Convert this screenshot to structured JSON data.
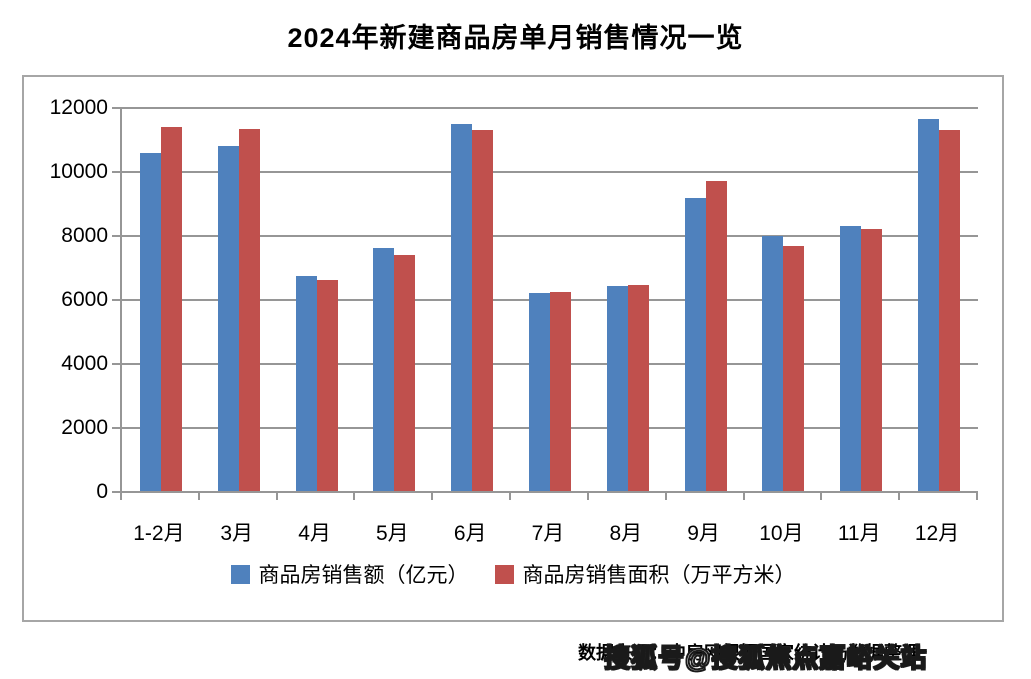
{
  "title": "2024年新建商品房单月销售情况一览",
  "chart_data": {
    "type": "bar",
    "categories": [
      "1-2月",
      "3月",
      "4月",
      "5月",
      "6月",
      "7月",
      "8月",
      "9月",
      "10月",
      "11月",
      "12月"
    ],
    "series": [
      {
        "name": "商品房销售额（亿元）",
        "color": "#4F81BD",
        "values": [
          10566,
          10789,
          6712,
          7598,
          11468,
          6197,
          6393,
          9157,
          7975,
          8270,
          11625
        ]
      },
      {
        "name": "商品房销售面积（万平方米）",
        "color": "#C0504D",
        "values": [
          11369,
          11299,
          6584,
          7390,
          11274,
          6233,
          6453,
          9682,
          7646,
          8188,
          11267
        ]
      }
    ],
    "title": "2024年新建商品房单月销售情况一览",
    "xlabel": "",
    "ylabel": "",
    "ylim": [
      0,
      12000
    ],
    "yticks": [
      0,
      2000,
      4000,
      6000,
      8000,
      10000,
      12000
    ],
    "grid": true,
    "legend_position": "bottom"
  },
  "footer": {
    "source_text": "数据来源：中房网根据国家统计局数据整理"
  },
  "watermark": {
    "text": "搜狐号@搜狐焦点嘉峪关站"
  },
  "colors": {
    "series_sales_value": "#4F81BD",
    "series_sales_area": "#C0504D",
    "gridline": "#969696",
    "frame_border": "#A6A6A6",
    "title_color": "#000000",
    "background": "#FFFFFF"
  }
}
